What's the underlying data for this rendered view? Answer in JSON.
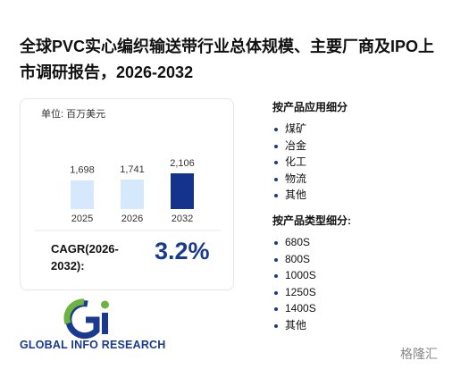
{
  "title": "全球PVC实心编织输送带行业总体规模、主要厂商及IPO上市调研报告，2026-2032",
  "chart_data": {
    "type": "bar",
    "unit": "单位: 百万美元",
    "categories": [
      "2025",
      "2026",
      "2032"
    ],
    "values": [
      1698,
      1741,
      2106
    ],
    "value_labels": [
      "1,698",
      "1,741",
      "2,106"
    ],
    "colors": [
      "#d6e8fb",
      "#d6e8fb",
      "#14338a"
    ]
  },
  "cagr": {
    "label_lines": [
      "CAGR(2026-",
      "2032):"
    ],
    "value": "3.2%"
  },
  "segments": [
    {
      "heading": "按产品应用细分",
      "items": [
        "煤矿",
        "冶金",
        "化工",
        "物流",
        "其他"
      ]
    },
    {
      "heading": "按产品类型细分:",
      "items": [
        "680S",
        "800S",
        "1000S",
        "1250S",
        "1400S",
        "其他"
      ]
    }
  ],
  "brand": "GLOBAL INFO RESEARCH",
  "watermark": "格隆汇"
}
